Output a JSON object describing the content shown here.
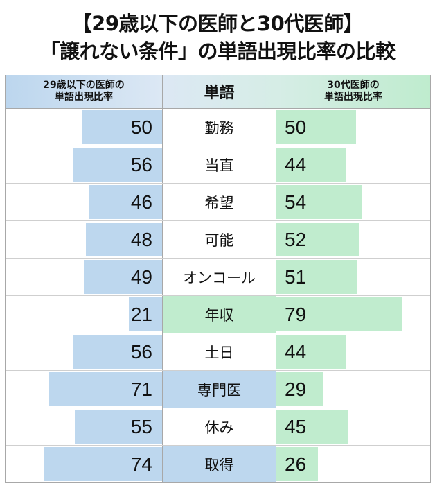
{
  "title": {
    "line1": "【29歳以下の医師と30代医師】",
    "line2": "「譲れない条件」の単語出現比率の比較"
  },
  "header": {
    "left_line1": "29歳以下の医師の",
    "left_line2": "単語出現比率",
    "middle": "単語",
    "right_line1": "30代医師の",
    "right_line2": "単語出現比率"
  },
  "colors": {
    "under30_bar": "#bdd7ee",
    "thirties_bar": "#c0ecce"
  },
  "rows": [
    {
      "word": "勤務",
      "left": "50",
      "right": "50",
      "highlight": "none"
    },
    {
      "word": "当直",
      "left": "56",
      "right": "44",
      "highlight": "none"
    },
    {
      "word": "希望",
      "left": "46",
      "right": "54",
      "highlight": "none"
    },
    {
      "word": "可能",
      "left": "48",
      "right": "52",
      "highlight": "none"
    },
    {
      "word": "オンコール",
      "left": "49",
      "right": "51",
      "highlight": "none"
    },
    {
      "word": "年収",
      "left": "21",
      "right": "79",
      "highlight": "green"
    },
    {
      "word": "土日",
      "left": "56",
      "right": "44",
      "highlight": "none"
    },
    {
      "word": "専門医",
      "left": "71",
      "right": "29",
      "highlight": "blue"
    },
    {
      "word": "休み",
      "left": "55",
      "right": "45",
      "highlight": "none"
    },
    {
      "word": "取得",
      "left": "74",
      "right": "26",
      "highlight": "blue"
    }
  ],
  "chart_data": {
    "type": "bar",
    "title": "【29歳以下の医師と30代医師】「譲れない条件」の単語出現比率の比較",
    "categories": [
      "勤務",
      "当直",
      "希望",
      "可能",
      "オンコール",
      "年収",
      "土日",
      "専門医",
      "休み",
      "取得"
    ],
    "series": [
      {
        "name": "29歳以下の医師の単語出現比率",
        "values": [
          50,
          56,
          46,
          48,
          49,
          21,
          56,
          71,
          55,
          74
        ],
        "color": "#bdd7ee"
      },
      {
        "name": "30代医師の単語出現比率",
        "values": [
          50,
          44,
          54,
          52,
          51,
          79,
          44,
          29,
          45,
          26
        ],
        "color": "#c0ecce"
      }
    ],
    "orientation": "horizontal-butterfly",
    "xlim": [
      0,
      100
    ],
    "grid": false,
    "legend": "column headers"
  }
}
